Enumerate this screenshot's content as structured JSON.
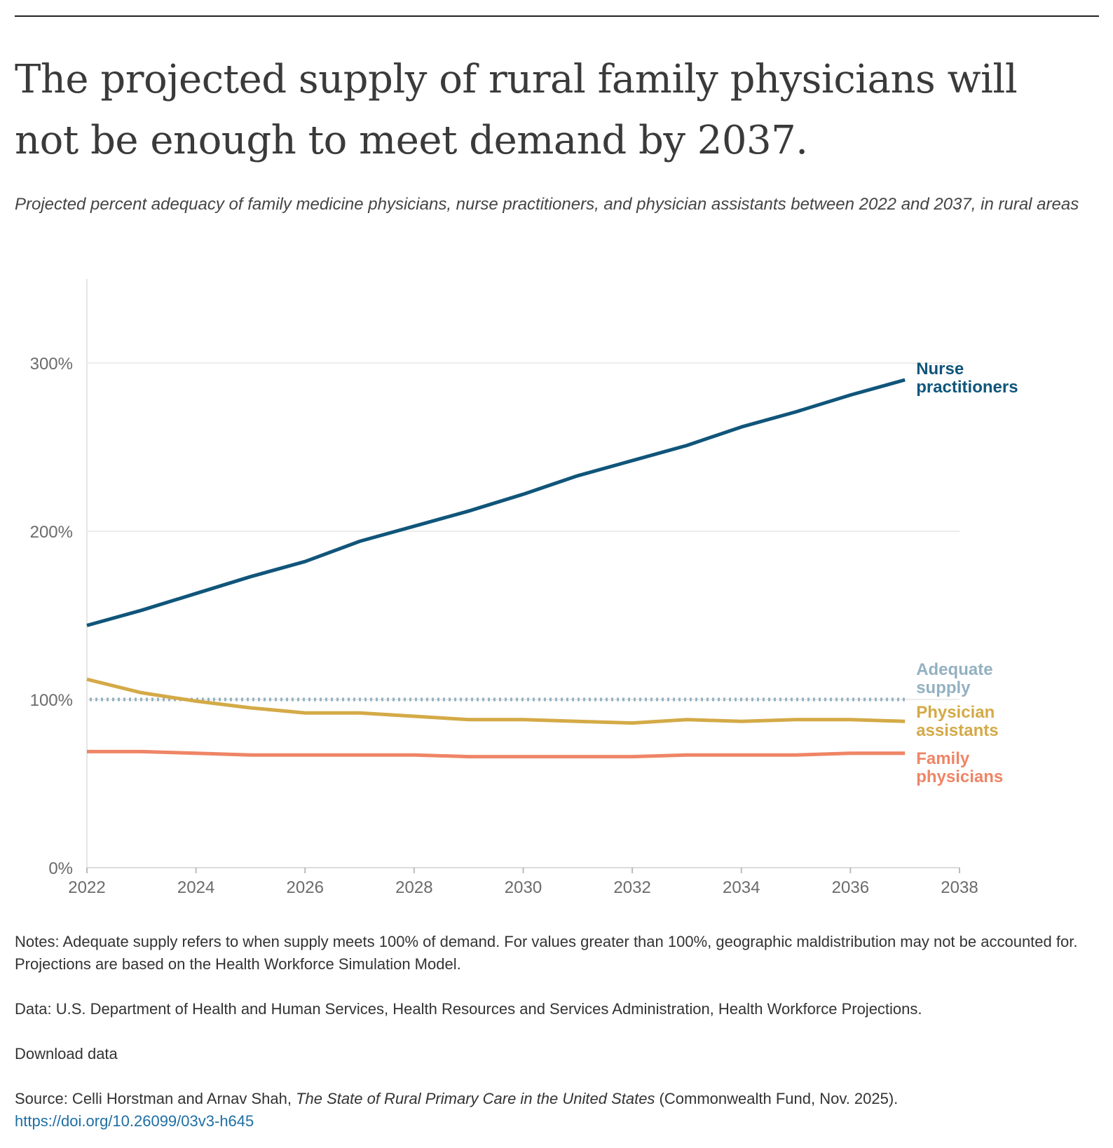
{
  "header": {
    "title": "The projected supply of rural family physicians will not be enough to meet demand by 2037.",
    "subtitle": "Projected percent adequacy of family medicine physicians, nurse practitioners, and physician assistants between 2022 and 2037, in rural areas"
  },
  "chart_data": {
    "type": "line",
    "x": [
      2022,
      2023,
      2024,
      2025,
      2026,
      2027,
      2028,
      2029,
      2030,
      2031,
      2032,
      2033,
      2034,
      2035,
      2036,
      2037
    ],
    "xlim": [
      2022,
      2038
    ],
    "ylim": [
      0,
      350
    ],
    "x_ticks": [
      "2022",
      "2024",
      "2026",
      "2028",
      "2030",
      "2032",
      "2034",
      "2036",
      "2038"
    ],
    "y_ticks": [
      "0%",
      "100%",
      "200%",
      "300%"
    ],
    "grid": "horizontal",
    "legend": "direct labels at line ends (right)",
    "series": [
      {
        "name": "Nurse practitioners",
        "label_lines": [
          "Nurse",
          "practitioners"
        ],
        "color": "#10557a",
        "values": [
          144,
          153,
          163,
          173,
          182,
          194,
          203,
          212,
          222,
          233,
          242,
          251,
          262,
          271,
          281,
          290
        ]
      },
      {
        "name": "Physician assistants",
        "label_lines": [
          "Physician",
          "assistants"
        ],
        "color": "#d4aa47",
        "values": [
          112,
          104,
          99,
          95,
          92,
          92,
          90,
          88,
          88,
          87,
          86,
          88,
          87,
          88,
          88,
          87
        ]
      },
      {
        "name": "Family physicians",
        "label_lines": [
          "Family",
          "physicians"
        ],
        "color": "#ee8566",
        "values": [
          69,
          69,
          68,
          67,
          67,
          67,
          67,
          66,
          66,
          66,
          66,
          67,
          67,
          67,
          68,
          68
        ]
      }
    ],
    "reference_line": {
      "name": "Adequate supply",
      "label_lines": [
        "Adequate",
        "supply"
      ],
      "value": 100,
      "color": "#94b1c1",
      "style": "dotted"
    }
  },
  "footer": {
    "notes": "Notes: Adequate supply refers to when supply meets 100% of demand. For values greater than 100%, geographic maldistribution may not be accounted for. Projections are based on the Health Workforce Simulation Model.",
    "data": "Data: U.S. Department of Health and Human Services, Health Resources and Services Administration, Health Workforce Projections.",
    "download": "Download data",
    "source_prefix": "Source: Celli Horstman and Arnav Shah, ",
    "source_title": "The State of Rural Primary Care in the United States",
    "source_suffix": " (Commonwealth Fund, Nov. 2025).",
    "doi": "https://doi.org/10.26099/03v3-h645"
  }
}
